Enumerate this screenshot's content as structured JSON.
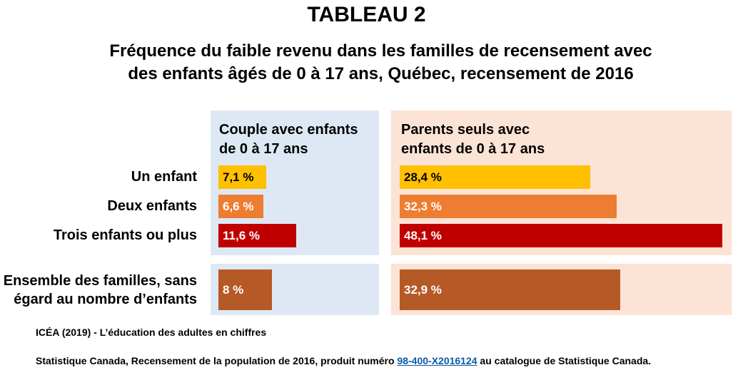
{
  "header": {
    "title": "TABLEAU 2",
    "subtitle_line1": "Fréquence du faible revenu dans les familles de recensement avec",
    "subtitle_line2": "des enfants âgés de 0 à 17 ans, Québec, recensement de 2016"
  },
  "colors": {
    "one_child": "#ffc000",
    "two_children": "#ed7d31",
    "three_plus": "#c00000",
    "all_families": "#b55a26",
    "couple_panel": "#dde8f4",
    "single_panel": "#fbe3d6"
  },
  "chart_data": {
    "type": "bar",
    "orientation": "horizontal",
    "title": "TABLEAU 2",
    "subtitle": "Fréquence du faible revenu dans les familles de recensement avec des enfants âgés de 0 à 17 ans, Québec, recensement de 2016",
    "categories": [
      "Un enfant",
      "Deux enfants",
      "Trois enfants ou plus",
      "Ensemble des familles, sans égard au nombre d’enfants"
    ],
    "category_lines": {
      "total_line1": "Ensemble des familles, sans",
      "total_line2": "égard au nombre d’enfants"
    },
    "series": [
      {
        "name": "Couple avec enfants de 0 à 17 ans",
        "name_line1": "Couple avec enfants",
        "name_line2": "de 0 à 17 ans",
        "values": [
          7.1,
          6.6,
          11.6,
          8
        ],
        "labels": [
          "7,1 %",
          "6,6 %",
          "11,6 %",
          "8 %"
        ]
      },
      {
        "name": "Parents seuls avec enfants de 0 à 17 ans",
        "name_line1": "Parents seuls avec",
        "name_line2": "enfants de 0 à 17 ans",
        "values": [
          28.4,
          32.3,
          48.1,
          32.9
        ],
        "labels": [
          "28,4 %",
          "32,3 %",
          "48,1 %",
          "32,9 %"
        ]
      }
    ],
    "unit": "%",
    "xlim": [
      0,
      50
    ],
    "grid": false,
    "legend": "none"
  },
  "footer": {
    "source1": "ICÉA (2019) - L’éducation des adultes en chiffres",
    "source2_before": "Statistique Canada, Recensement de la population de 2016, produit numéro ",
    "source2_link": "98-400-X2016124",
    "source2_after": " au catalogue de Statistique Canada."
  }
}
